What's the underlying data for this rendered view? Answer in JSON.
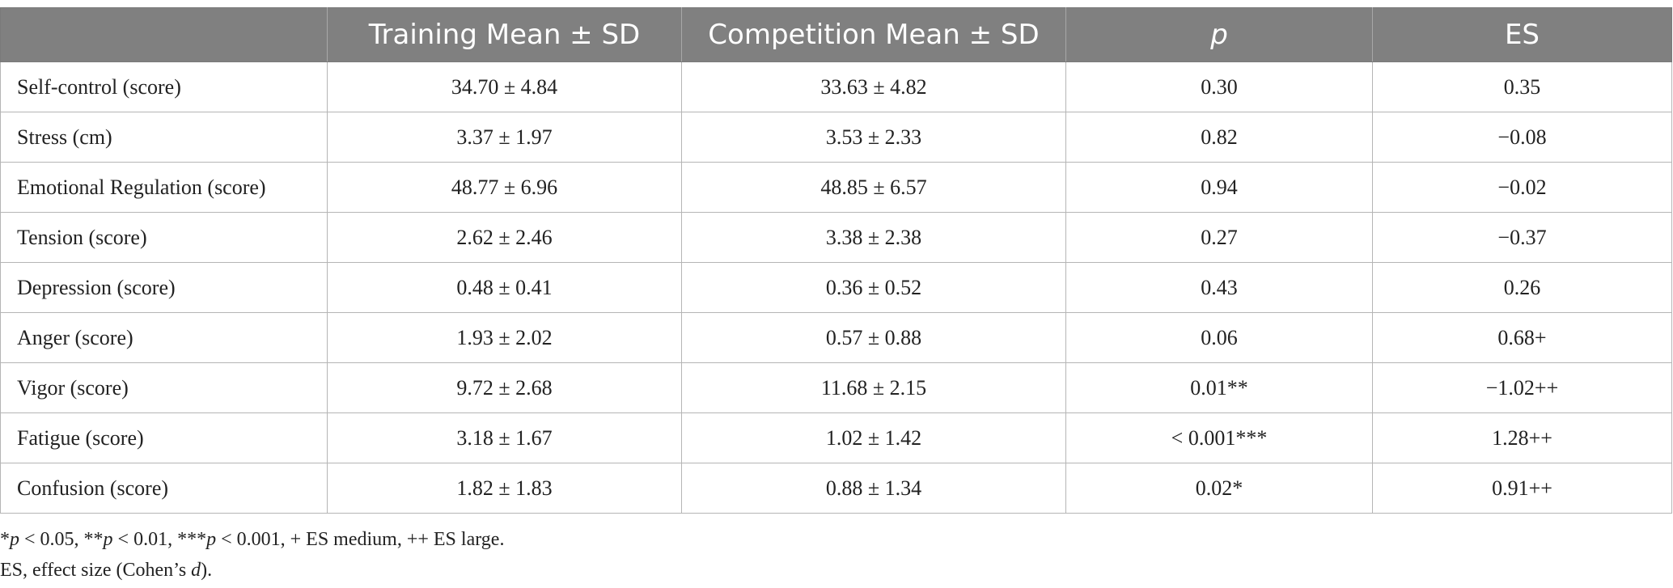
{
  "table": {
    "headers": [
      "",
      "Training Mean ± SD",
      "Competition Mean ± SD",
      "p",
      "ES"
    ],
    "rows": [
      [
        "Self-control (score)",
        "34.70 ± 4.84",
        "33.63 ± 4.82",
        "0.30",
        "0.35"
      ],
      [
        "Stress (cm)",
        "3.37 ± 1.97",
        "3.53 ± 2.33",
        "0.82",
        "−0.08"
      ],
      [
        "Emotional Regulation (score)",
        "48.77 ± 6.96",
        "48.85 ± 6.57",
        "0.94",
        "−0.02"
      ],
      [
        "Tension (score)",
        "2.62 ± 2.46",
        "3.38 ± 2.38",
        "0.27",
        "−0.37"
      ],
      [
        "Depression (score)",
        "0.48 ± 0.41",
        "0.36 ± 0.52",
        "0.43",
        "0.26"
      ],
      [
        "Anger (score)",
        "1.93 ± 2.02",
        "0.57 ± 0.88",
        "0.06",
        "0.68+"
      ],
      [
        "Vigor (score)",
        "9.72 ± 2.68",
        "11.68 ± 2.15",
        "0.01**",
        "−1.02++"
      ],
      [
        "Fatigue (score)",
        "3.18 ± 1.67",
        "1.02 ± 1.42",
        "< 0.001***",
        "1.28++"
      ],
      [
        "Confusion (score)",
        "1.82 ± 1.83",
        "0.88 ± 1.34",
        "0.02*",
        "0.91++"
      ]
    ]
  },
  "footnotes": {
    "line1": {
      "s1": "*",
      "p1": "p",
      "s2": " < 0.05, **",
      "p2": "p",
      "s3": " < 0.01, ***",
      "p3": "p",
      "s4": " < 0.001, + ES medium, ++ ES large."
    },
    "line2": {
      "s1": "ES, effect size (Cohen’s ",
      "d": "d",
      "s2": ")."
    }
  }
}
